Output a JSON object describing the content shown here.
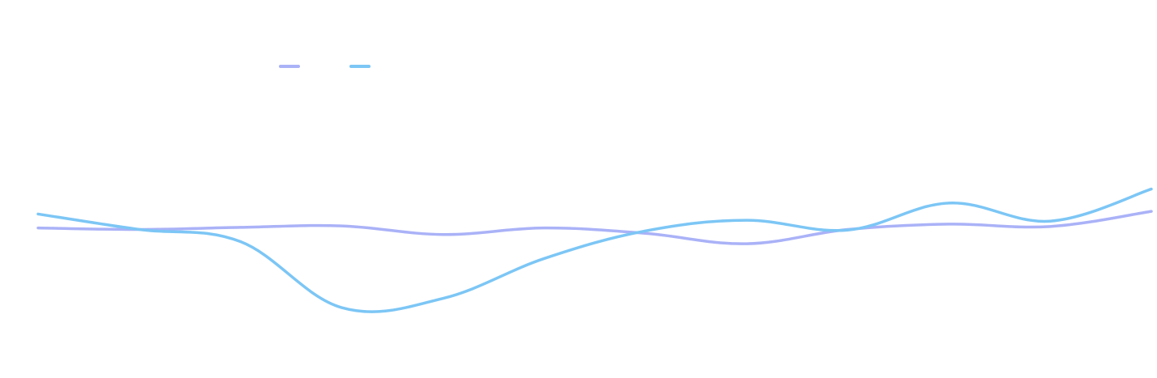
{
  "chart_data": {
    "type": "line",
    "title": "",
    "xlabel": "",
    "ylabel": "",
    "x": [
      1,
      2,
      3,
      4,
      5,
      6,
      7,
      8,
      9,
      10,
      11,
      12
    ],
    "ylim": [
      0,
      100
    ],
    "grid": false,
    "legend": "top-left",
    "series": [
      {
        "color": "#aab2f7",
        "values": [
          50.5,
          50,
          50.7,
          51.2,
          48.3,
          50.5,
          48.7,
          45.2,
          50,
          51.8,
          51,
          56.1
        ]
      },
      {
        "color": "#7cc6f5",
        "values": [
          55.2,
          50,
          45.9,
          23.7,
          26.8,
          40.2,
          49.5,
          53.1,
          49.8,
          58.9,
          52.8,
          63.6
        ]
      }
    ]
  }
}
